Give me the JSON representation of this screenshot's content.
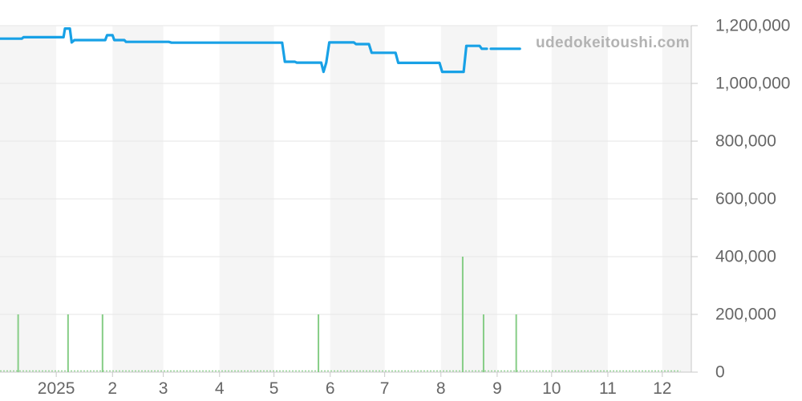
{
  "watermark": "udedokeitoushi.com",
  "colors": {
    "line": "#18a1e6",
    "bar": "#86cd86",
    "zero_dots": "#9ad79a",
    "band": "#f5f5f5",
    "grid": "#e6e6e6",
    "axis": "#c8c8c8",
    "label": "#666666",
    "watermark": "#b3b3b3"
  },
  "chart_data": {
    "type": "line+bar",
    "title": "",
    "legend": "none",
    "grid": "on",
    "x_axis": {
      "type": "datetime",
      "start": "2024-12-01",
      "total_days": 381,
      "ticks": [
        {
          "label": "2025",
          "day": 31
        },
        {
          "label": "2",
          "day": 62
        },
        {
          "label": "3",
          "day": 90
        },
        {
          "label": "4",
          "day": 121
        },
        {
          "label": "5",
          "day": 151
        },
        {
          "label": "6",
          "day": 182
        },
        {
          "label": "7",
          "day": 212
        },
        {
          "label": "8",
          "day": 243
        },
        {
          "label": "9",
          "day": 274
        },
        {
          "label": "10",
          "day": 304
        },
        {
          "label": "11",
          "day": 335
        },
        {
          "label": "12",
          "day": 365
        }
      ],
      "band_boundaries": [
        0,
        31,
        62,
        90,
        121,
        151,
        182,
        212,
        243,
        274,
        304,
        335,
        365,
        381
      ]
    },
    "y_axis": {
      "position": "right",
      "min": 0,
      "max": 1200000,
      "tick_interval": 200000,
      "tick_values": [
        0,
        200000,
        400000,
        600000,
        800000,
        1000000,
        1200000
      ],
      "labels": [
        "0",
        "200,000",
        "400,000",
        "600,000",
        "800,000",
        "1,000,000",
        "1,200,000"
      ]
    },
    "price_line": {
      "segments": [
        [
          [
            0,
            1155000
          ],
          [
            12,
            1155000
          ],
          [
            13,
            1160000
          ],
          [
            35,
            1160000
          ],
          [
            35.8,
            1190000
          ],
          [
            38.5,
            1190000
          ],
          [
            39.5,
            1142000
          ],
          [
            41,
            1150000
          ],
          [
            58,
            1150000
          ],
          [
            59,
            1167000
          ],
          [
            62,
            1167000
          ],
          [
            63,
            1150000
          ],
          [
            68.5,
            1150000
          ],
          [
            69.5,
            1144000
          ],
          [
            93,
            1144000
          ],
          [
            94.5,
            1141000
          ],
          [
            155.5,
            1141000
          ],
          [
            157,
            1075000
          ],
          [
            162.5,
            1075000
          ],
          [
            163.5,
            1072000
          ],
          [
            177,
            1072000
          ],
          [
            178.3,
            1040000
          ],
          [
            179.8,
            1072000
          ],
          [
            181.5,
            1142000
          ],
          [
            195,
            1142000
          ],
          [
            196.2,
            1136000
          ],
          [
            203.3,
            1136000
          ],
          [
            204.8,
            1106000
          ],
          [
            218,
            1106000
          ],
          [
            219.5,
            1071000
          ],
          [
            242.2,
            1071000
          ],
          [
            243.7,
            1040000
          ],
          [
            255.5,
            1040000
          ],
          [
            257,
            1130000
          ],
          [
            264.3,
            1130000
          ],
          [
            265.5,
            1120000
          ],
          [
            268.3,
            1120000
          ]
        ],
        [
          [
            270.5,
            1120000
          ],
          [
            286.5,
            1120000
          ]
        ]
      ]
    },
    "volume_bars": [
      {
        "day": 10,
        "value": 200000
      },
      {
        "day": 37.5,
        "value": 200000
      },
      {
        "day": 56.5,
        "value": 200000
      },
      {
        "day": 175.5,
        "value": 200000
      },
      {
        "day": 255,
        "value": 400000
      },
      {
        "day": 266.5,
        "value": 200000
      },
      {
        "day": 284.5,
        "value": 200000
      }
    ],
    "zero_line": {
      "from_day": 0,
      "to_day": 375
    }
  }
}
